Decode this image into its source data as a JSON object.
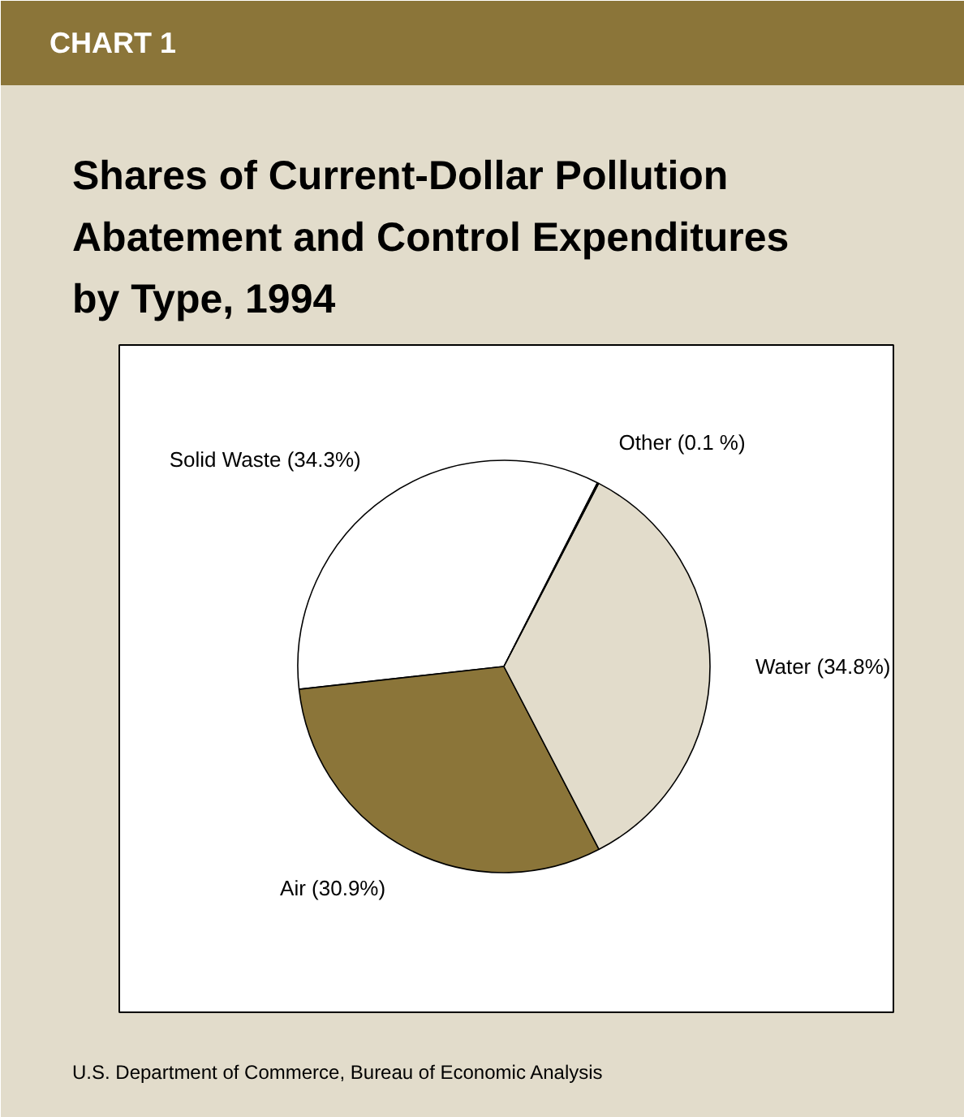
{
  "chart_data": {
    "type": "pie",
    "title": "Shares of Current-Dollar Pollution Abatement and Control Expenditures by Type, 1994",
    "annotations": [
      "CHART 1",
      "U.S. Department of Commerce, Bureau of Economic Analysis"
    ],
    "categories": [
      "Other (0.1 %)",
      "Water (34.8%)",
      "Air (30.9%)",
      "Solid Waste (34.3%)"
    ],
    "values": [
      0.1,
      34.8,
      30.9,
      34.3
    ],
    "colors": [
      "#000000",
      "#e2dccb",
      "#8b7539",
      "#ffffff"
    ]
  }
}
